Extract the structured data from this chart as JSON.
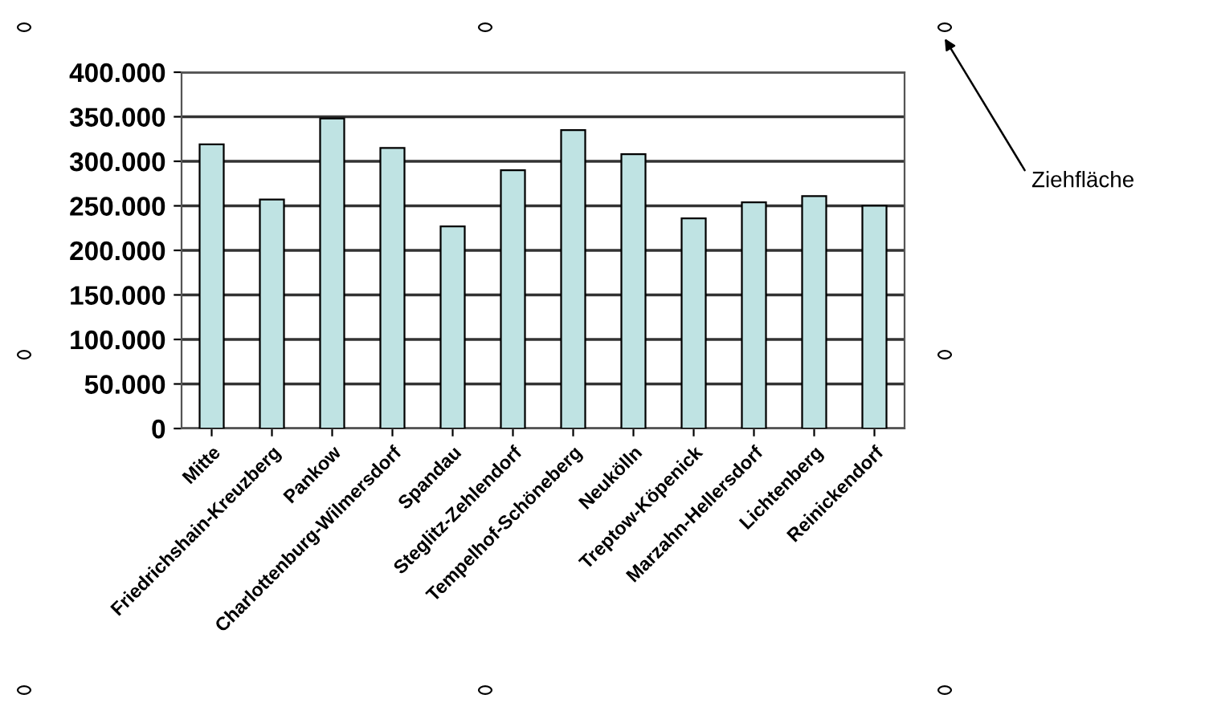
{
  "chart_data": {
    "type": "bar",
    "categories": [
      "Mitte",
      "Friedrichshain-Kreuzberg",
      "Pankow",
      "Charlottenburg-Wilmersdorf",
      "Spandau",
      "Steglitz-Zehlendorf",
      "Tempelhof-Schöneberg",
      "Neukölln",
      "Treptow-Köpenick",
      "Marzahn-Hellersdorf",
      "Lichtenberg",
      "Reinickendorf"
    ],
    "values": [
      319000,
      257000,
      348000,
      315000,
      227000,
      290000,
      335000,
      308000,
      236000,
      254000,
      261000,
      250000
    ],
    "color": "#bfe3e3",
    "ylim": [
      0,
      400000
    ],
    "yticks": [
      {
        "value": 0,
        "label": "0"
      },
      {
        "value": 50000,
        "label": "50.000"
      },
      {
        "value": 100000,
        "label": "100.000"
      },
      {
        "value": 150000,
        "label": "150.000"
      },
      {
        "value": 200000,
        "label": "200.000"
      },
      {
        "value": 250000,
        "label": "250.000"
      },
      {
        "value": 300000,
        "label": "300.000"
      },
      {
        "value": 350000,
        "label": "350.000"
      },
      {
        "value": 400000,
        "label": "400.000"
      }
    ],
    "grid": "y",
    "annotations": [
      "Ziehfläche"
    ]
  }
}
